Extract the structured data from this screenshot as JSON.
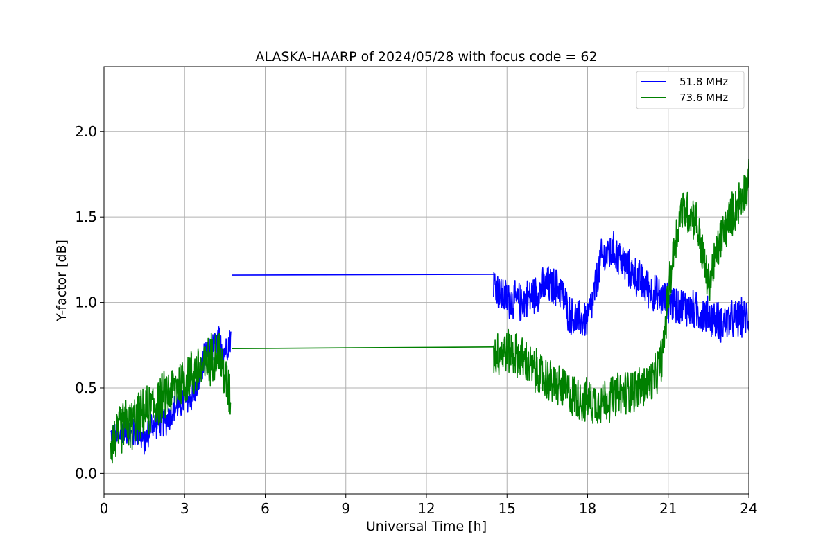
{
  "chart_data": {
    "type": "line",
    "title": "ALASKA-HAARP of 2024/05/28 with focus code = 62",
    "xlabel": "Universal Time [h]",
    "ylabel": "Y-factor [dB]",
    "xlim": [
      0,
      24
    ],
    "ylim": [
      -0.12,
      2.38
    ],
    "xticks": [
      0,
      3,
      6,
      9,
      12,
      15,
      18,
      21,
      24
    ],
    "xtick_labels": [
      "0",
      "3",
      "6",
      "9",
      "12",
      "15",
      "18",
      "21",
      "24"
    ],
    "yticks": [
      0.0,
      0.5,
      1.0,
      1.5,
      2.0
    ],
    "ytick_labels": [
      "0.0",
      "0.5",
      "1.0",
      "1.5",
      "2.0"
    ],
    "grid": true,
    "legend_position": "top-right",
    "series": [
      {
        "name": "51.8 MHz",
        "color": "#0000ff",
        "segments": [
          {
            "x": [
              0.25,
              0.5,
              0.75,
              1.0,
              1.25,
              1.5,
              1.75,
              2.0,
              2.25,
              2.5,
              2.75,
              3.0,
              3.25,
              3.5,
              3.75,
              4.0,
              4.25,
              4.5,
              4.72
            ],
            "y": [
              0.22,
              0.2,
              0.28,
              0.22,
              0.25,
              0.18,
              0.28,
              0.3,
              0.3,
              0.35,
              0.4,
              0.42,
              0.45,
              0.52,
              0.68,
              0.72,
              0.78,
              0.72,
              0.8
            ],
            "noise": 0.1
          },
          {
            "x": [
              4.75,
              14.5
            ],
            "y": [
              1.16,
              1.165
            ],
            "noise": 0
          },
          {
            "x": [
              14.5,
              14.75,
              15.0,
              15.5,
              16.0,
              16.5,
              17.0,
              17.25,
              17.5,
              18.0,
              18.25,
              18.5,
              18.75,
              19.0,
              19.5,
              20.0,
              20.5,
              21.0,
              21.5,
              22.0,
              22.5,
              23.0,
              23.5,
              24.0
            ],
            "y": [
              1.12,
              1.05,
              1.02,
              1.0,
              1.05,
              1.1,
              1.08,
              0.95,
              0.9,
              0.9,
              1.05,
              1.25,
              1.28,
              1.3,
              1.2,
              1.12,
              1.05,
              1.0,
              0.98,
              0.95,
              0.92,
              0.88,
              0.9,
              0.92
            ],
            "noise": 0.13
          }
        ]
      },
      {
        "name": "73.6 MHz",
        "color": "#008000",
        "segments": [
          {
            "x": [
              0.25,
              0.5,
              0.75,
              1.0,
              1.25,
              1.5,
              1.75,
              2.0,
              2.25,
              2.5,
              2.75,
              3.0,
              3.25,
              3.5,
              3.75,
              4.0,
              4.25,
              4.5,
              4.72
            ],
            "y": [
              0.18,
              0.22,
              0.3,
              0.28,
              0.32,
              0.35,
              0.38,
              0.42,
              0.45,
              0.48,
              0.52,
              0.55,
              0.58,
              0.6,
              0.62,
              0.68,
              0.72,
              0.55,
              0.45
            ],
            "noise": 0.17
          },
          {
            "x": [
              4.75,
              14.5
            ],
            "y": [
              0.73,
              0.74
            ],
            "noise": 0
          },
          {
            "x": [
              14.5,
              15.0,
              15.5,
              16.0,
              16.5,
              17.0,
              17.5,
              18.0,
              18.5,
              19.0,
              19.5,
              20.0,
              20.5,
              20.8,
              21.0,
              21.25,
              21.5,
              22.0,
              22.25,
              22.5,
              22.75,
              23.0,
              23.5,
              24.0
            ],
            "y": [
              0.7,
              0.72,
              0.68,
              0.6,
              0.55,
              0.5,
              0.45,
              0.42,
              0.42,
              0.45,
              0.48,
              0.5,
              0.55,
              0.7,
              1.05,
              1.35,
              1.55,
              1.5,
              1.3,
              1.1,
              1.25,
              1.4,
              1.55,
              1.7
            ],
            "noise": 0.15
          }
        ]
      }
    ]
  }
}
